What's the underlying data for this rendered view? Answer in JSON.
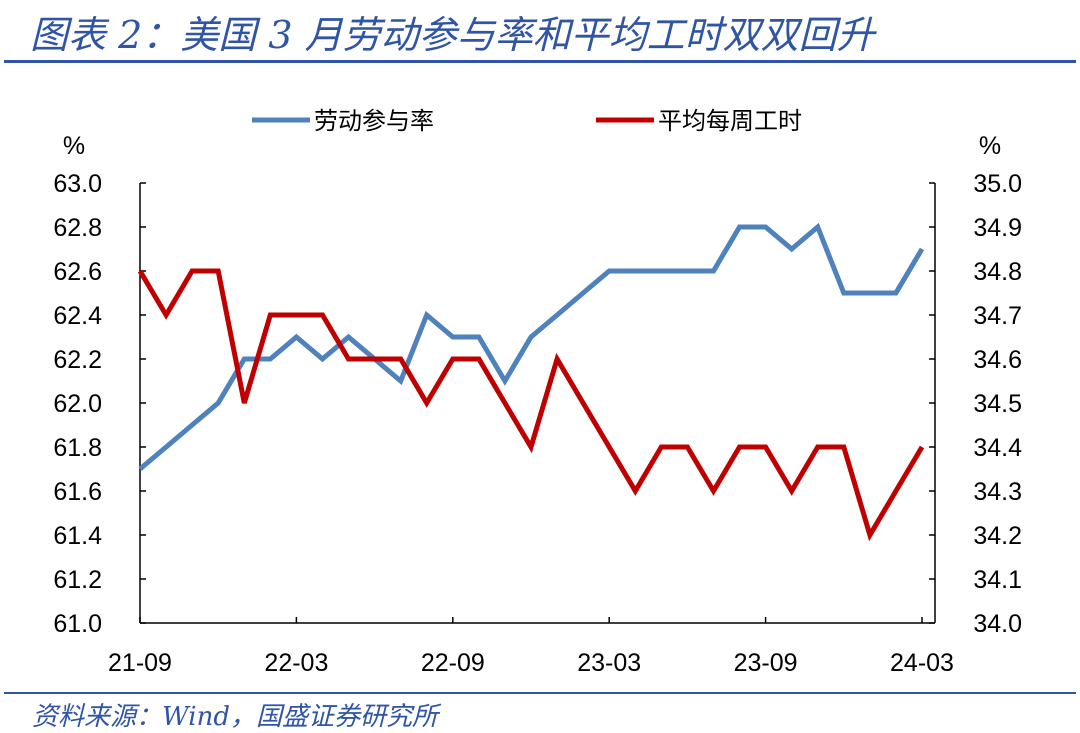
{
  "header": {
    "title": "图表 2：美国 3 月劳动参与率和平均工时双双回升"
  },
  "footer": {
    "source": "资料来源：Wind，国盛证券研究所"
  },
  "colors": {
    "accent": "#2f55a4",
    "series_lfpr": "#4f81bd",
    "series_hours": "#c00000"
  },
  "chart_data": {
    "type": "line",
    "title": "",
    "left_axis": {
      "unit": "%",
      "ylim": [
        61.0,
        63.0
      ],
      "ticks": [
        "61.0",
        "61.2",
        "61.4",
        "61.6",
        "61.8",
        "62.0",
        "62.2",
        "62.4",
        "62.6",
        "62.8",
        "63.0"
      ]
    },
    "right_axis": {
      "unit": "%",
      "ylim": [
        34.0,
        35.0
      ],
      "ticks": [
        "34.0",
        "34.1",
        "34.2",
        "34.3",
        "34.4",
        "34.5",
        "34.6",
        "34.7",
        "34.8",
        "34.9",
        "35.0"
      ]
    },
    "x_tick_labels": [
      "21-09",
      "22-03",
      "22-09",
      "23-03",
      "23-09",
      "24-03"
    ],
    "x": [
      "21-09",
      "21-10",
      "21-11",
      "21-12",
      "22-01",
      "22-02",
      "22-03",
      "22-04",
      "22-05",
      "22-06",
      "22-07",
      "22-08",
      "22-09",
      "22-10",
      "22-11",
      "22-12",
      "23-01",
      "23-02",
      "23-03",
      "23-04",
      "23-05",
      "23-06",
      "23-07",
      "23-08",
      "23-09",
      "23-10",
      "23-11",
      "23-12",
      "24-01",
      "24-02",
      "24-03"
    ],
    "legend_position": "top",
    "series": [
      {
        "name": "劳动参与率",
        "axis": "left",
        "values": [
          61.7,
          61.8,
          61.9,
          62.0,
          62.2,
          62.2,
          62.3,
          62.2,
          62.3,
          62.2,
          62.1,
          62.4,
          62.3,
          62.3,
          62.1,
          62.3,
          62.4,
          62.5,
          62.6,
          62.6,
          62.6,
          62.6,
          62.6,
          62.8,
          62.8,
          62.7,
          62.8,
          62.5,
          62.5,
          62.5,
          62.7
        ]
      },
      {
        "name": "平均每周工时",
        "axis": "right",
        "values": [
          34.8,
          34.7,
          34.8,
          34.8,
          34.5,
          34.7,
          34.7,
          34.7,
          34.6,
          34.6,
          34.6,
          34.5,
          34.6,
          34.6,
          34.5,
          34.4,
          34.6,
          34.5,
          34.4,
          34.3,
          34.4,
          34.4,
          34.3,
          34.4,
          34.4,
          34.3,
          34.4,
          34.4,
          34.2,
          34.3,
          34.4
        ]
      }
    ]
  }
}
